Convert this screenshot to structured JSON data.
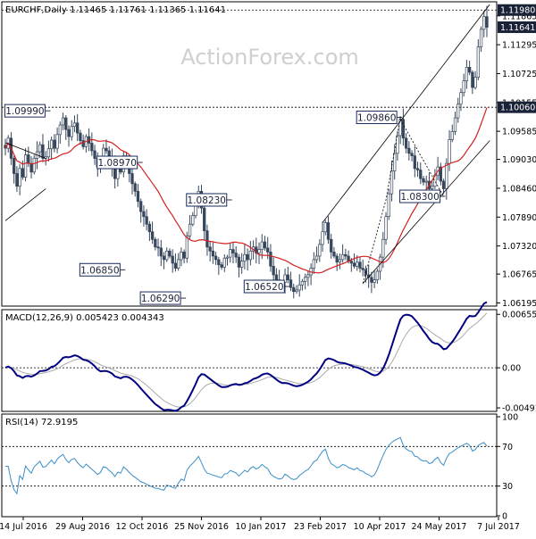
{
  "chart_data": [
    {
      "type": "candlestick",
      "panel": "price",
      "header": "EURCHF,Daily 1.11465 1.11761 1.11365 1.11641",
      "watermark": "ActionForex.com",
      "ylim": [
        1.0615,
        1.1209
      ],
      "y_ticks": [
        "1.11865",
        "1.11295",
        "1.10725",
        "1.10155",
        "1.09585",
        "1.09030",
        "1.08460",
        "1.07890",
        "1.07320",
        "1.06765",
        "1.06195"
      ],
      "price_tags": [
        {
          "label": "1.11980",
          "value": 1.1198,
          "style": "dark"
        },
        {
          "label": "1.11641",
          "value": 1.11641,
          "style": "dark"
        },
        {
          "label": "1.10060",
          "value": 1.1006,
          "style": "dark"
        }
      ],
      "horizontal_lines": [
        1.1198,
        1.1006
      ],
      "annotations": [
        {
          "label": "1.09990",
          "value": 1.0999
        },
        {
          "label": "1.08970",
          "value": 1.0897
        },
        {
          "label": "1.08230",
          "value": 1.0823
        },
        {
          "label": "1.06850",
          "value": 1.0685
        },
        {
          "label": "1.06290",
          "value": 1.0629
        },
        {
          "label": "1.06520",
          "value": 1.0652
        },
        {
          "label": "1.09860",
          "value": 1.0986
        },
        {
          "label": "1.08300",
          "value": 1.083
        }
      ],
      "closes": [
        1.0925,
        1.0945,
        1.0905,
        1.0875,
        1.085,
        1.0885,
        1.0868,
        1.0912,
        1.0895,
        1.0878,
        1.0905,
        1.0918,
        1.0932,
        1.0905,
        1.0908,
        1.0924,
        1.0941,
        1.0925,
        1.0952,
        1.0971,
        1.0985,
        1.0962,
        1.0948,
        1.0968,
        1.0975,
        1.0955,
        1.094,
        1.0928,
        1.0948,
        1.0935,
        1.092,
        1.0905,
        1.0888,
        1.0897,
        1.0925,
        1.092,
        1.0905,
        1.089,
        1.0865,
        1.0885,
        1.0878,
        1.091,
        1.0895,
        1.0875,
        1.0855,
        1.084,
        1.082,
        1.08,
        1.079,
        1.0775,
        1.076,
        1.0745,
        1.073,
        1.0728,
        1.0712,
        1.0705,
        1.0722,
        1.0712,
        1.0698,
        1.0688,
        1.0705,
        1.072,
        1.0708,
        1.0752,
        1.0775,
        1.0792,
        1.0812,
        1.084,
        1.0807,
        1.0762,
        1.073,
        1.0722,
        1.0712,
        1.0705,
        1.0695,
        1.069,
        1.0708,
        1.071,
        1.0725,
        1.0718,
        1.071,
        1.069,
        1.0702,
        1.0715,
        1.0705,
        1.0722,
        1.073,
        1.0718,
        1.0725,
        1.074,
        1.0728,
        1.072,
        1.0692,
        1.0675,
        1.0665,
        1.0658,
        1.066,
        1.0675,
        1.0665,
        1.065,
        1.0642,
        1.0645,
        1.0655,
        1.0662,
        1.067,
        1.0675,
        1.0688,
        1.0705,
        1.0712,
        1.0735,
        1.076,
        1.0778,
        1.0745,
        1.072,
        1.0712,
        1.07,
        1.0705,
        1.0715,
        1.0712,
        1.0702,
        1.0698,
        1.0692,
        1.07,
        1.0688,
        1.0685,
        1.0675,
        1.067,
        1.066,
        1.0665,
        1.0682,
        1.071,
        1.0745,
        1.079,
        1.0835,
        1.088,
        1.0915,
        1.095,
        1.0982,
        1.0945,
        1.0925,
        1.0915,
        1.091,
        1.0885,
        1.0882,
        1.0865,
        1.0858,
        1.086,
        1.0845,
        1.085,
        1.0872,
        1.0888,
        1.086,
        1.0845,
        1.0895,
        1.0942,
        1.0958,
        1.0985,
        1.1012,
        1.1035,
        1.1058,
        1.1085,
        1.1075,
        1.1045,
        1.1065,
        1.1125,
        1.116,
        1.1185,
        1.1164
      ]
    },
    {
      "type": "line",
      "panel": "macd",
      "header": "MACD(12,26,9) 0.005423 0.004343",
      "ylim": [
        -0.00502,
        0.0068
      ],
      "y_ticks": [
        "0.006554",
        "0.00",
        "-0.004916"
      ],
      "zero_line": 0
    },
    {
      "type": "line",
      "panel": "rsi",
      "header": "RSI(14) 72.9195",
      "ylim": [
        0,
        100
      ],
      "y_ticks": [
        "100",
        "70",
        "30",
        "0"
      ],
      "levels": [
        70,
        30
      ]
    }
  ],
  "x_axis": {
    "labels": [
      "14 Jul 2016",
      "29 Aug 2016",
      "12 Oct 2016",
      "25 Nov 2016",
      "10 Jan 2017",
      "23 Feb 2017",
      "10 Apr 2017",
      "24 May 2017",
      "7 Jul 2017"
    ]
  },
  "colors": {
    "candle": "#37475c",
    "ma": "#d42020",
    "macd": "#000080",
    "signal": "#aaaaaa",
    "rsi": "#3b8fc8",
    "frame": "#000000",
    "tag": "#1a2238",
    "ann_border": "#1a2b5c",
    "watermark": "#cfcfcf"
  }
}
